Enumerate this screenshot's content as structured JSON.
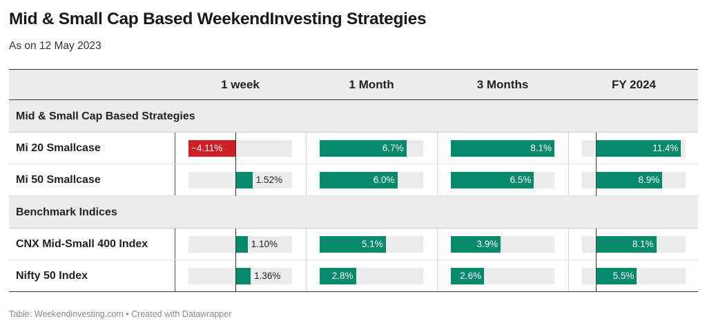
{
  "title": "Mid & Small Cap Based WeekendInvesting Strategies",
  "subtitle": "As on 12 May 2023",
  "footer": "Table: Weekendinvesting.com • Created with Datawrapper",
  "colors": {
    "positive": "#078a6c",
    "negative": "#cf1f26",
    "track": "#ebebeb"
  },
  "chart_data": {
    "type": "table",
    "columns": [
      "1 week",
      "1 Month",
      "3 Months",
      "FY 2024"
    ],
    "groups": [
      {
        "label": "Mid & Small Cap Based Strategies",
        "rows": [
          {
            "name": "Mi 20 Smallcase",
            "values": [
              -4.11,
              6.7,
              8.1,
              11.4
            ],
            "labels": [
              "−4.11%",
              "6.7%",
              "8.1%",
              "11.4%"
            ]
          },
          {
            "name": "Mi 50 Smallcase",
            "values": [
              1.52,
              6.0,
              6.5,
              8.9
            ],
            "labels": [
              "1.52%",
              "6.0%",
              "6.5%",
              "8.9%"
            ]
          }
        ]
      },
      {
        "label": "Benchmark Indices",
        "rows": [
          {
            "name": "CNX Mid-Small 400 Index",
            "values": [
              1.1,
              5.1,
              3.9,
              8.1
            ],
            "labels": [
              "1.10%",
              "5.1%",
              "3.9%",
              "8.1%"
            ]
          },
          {
            "name": "Nifty 50 Index",
            "values": [
              1.36,
              2.8,
              2.6,
              5.5
            ],
            "labels": [
              "1.36%",
              "2.8%",
              "2.6%",
              "5.5%"
            ]
          }
        ]
      }
    ],
    "column_ranges": [
      [
        -4.11,
        5.0
      ],
      [
        0,
        8.0
      ],
      [
        0,
        8.1
      ],
      [
        -1.8,
        12.0
      ]
    ]
  }
}
